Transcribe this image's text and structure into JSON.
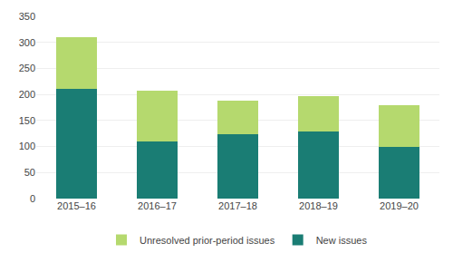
{
  "chart_data": {
    "type": "bar",
    "stacked": true,
    "categories": [
      "2015–16",
      "2016–17",
      "2017–18",
      "2018–19",
      "2019–20"
    ],
    "series": [
      {
        "name": "New issues",
        "color": "#1a7d74",
        "values": [
          210,
          110,
          123,
          128,
          100
        ]
      },
      {
        "name": "Unresolved prior-period issues",
        "color": "#b5d96e",
        "values": [
          100,
          97,
          65,
          68,
          79
        ]
      }
    ],
    "ylim": [
      0,
      350
    ],
    "yticks": [
      0,
      50,
      100,
      150,
      200,
      250,
      300,
      350
    ],
    "grid": true,
    "legend": "bottom"
  }
}
